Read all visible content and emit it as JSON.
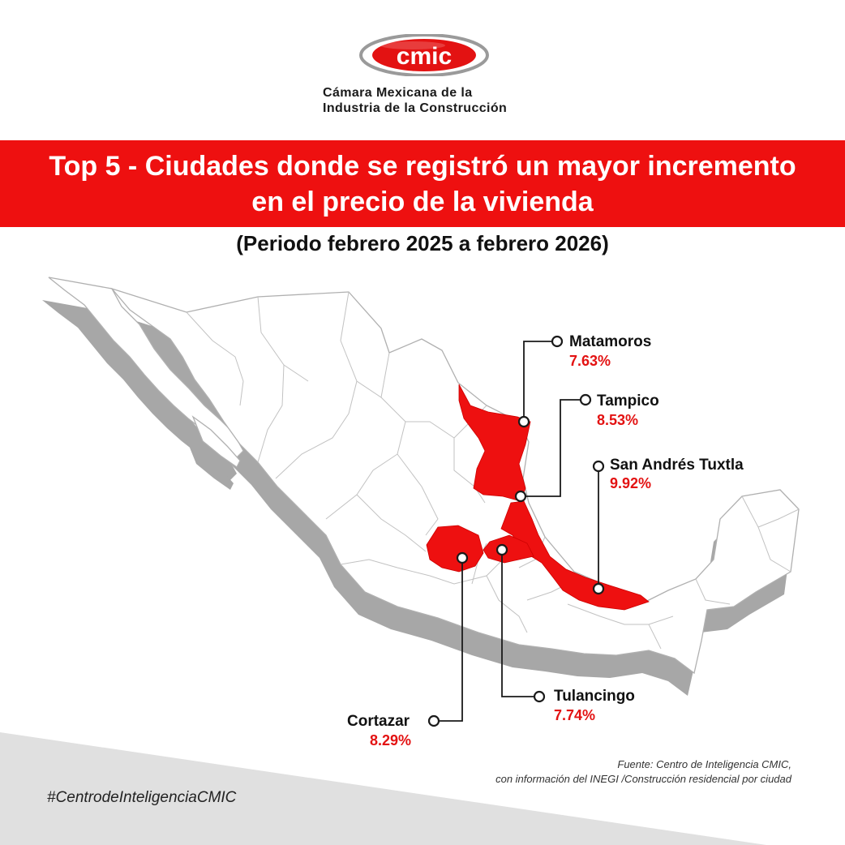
{
  "brand": {
    "logo_text": "cmic",
    "org_line1": "Cámara Mexicana de la",
    "org_line2": "Industria de la Construcción",
    "logo_red": "#e31212",
    "logo_gray": "#9a9a9a"
  },
  "title": "Top 5 - Ciudades donde se registró un mayor incremento en el precio de la vivienda",
  "subtitle": "(Periodo febrero 2025 a febrero 2026)",
  "map": {
    "highlight_color": "#ee1010",
    "base_color": "#ffffff",
    "shadow_color": "#a7a7a7",
    "border_color": "#b5b5b5"
  },
  "cities": [
    {
      "name": "Matamoros",
      "value": "7.63%"
    },
    {
      "name": "Tampico",
      "value": "8.53%"
    },
    {
      "name": "San Andrés Tuxtla",
      "value": "9.92%"
    },
    {
      "name": "Tulancingo",
      "value": "7.74%"
    },
    {
      "name": "Cortazar",
      "value": "8.29%"
    }
  ],
  "source_line1": "Fuente: Centro de Inteligencia CMIC,",
  "source_line2": "con información del INEGI /Construcción residencial por ciudad",
  "hashtag": "#CentrodeInteligenciaCMIC"
}
